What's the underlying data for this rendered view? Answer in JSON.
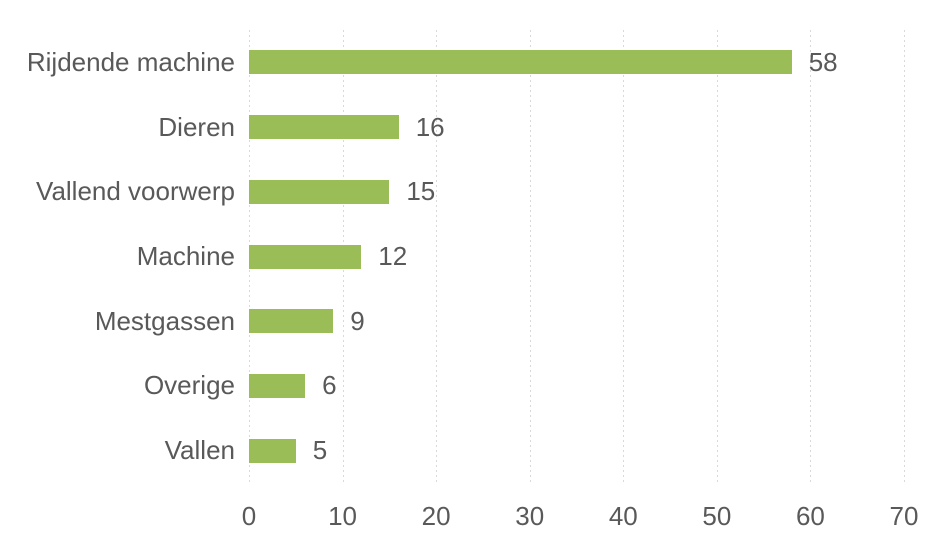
{
  "chart_data": {
    "type": "bar",
    "orientation": "horizontal",
    "title": "",
    "xlabel": "",
    "ylabel": "",
    "categories": [
      "Rijdende machine",
      "Dieren",
      "Vallend voorwerp",
      "Machine",
      "Mestgassen",
      "Overige",
      "Vallen"
    ],
    "values": [
      58,
      16,
      15,
      12,
      9,
      6,
      5
    ],
    "data_labels": [
      "58",
      "16",
      "15",
      "12",
      "9",
      "6",
      "5"
    ],
    "xlim": [
      0,
      70
    ],
    "xticks": [
      0,
      10,
      20,
      30,
      40,
      50,
      60,
      70
    ],
    "xtick_labels": [
      "0",
      "10",
      "20",
      "30",
      "40",
      "50",
      "60",
      "70"
    ],
    "grid": "vertical-dotted",
    "legend": "none",
    "bar_color": "#9BBD58",
    "text_color": "#595959",
    "gridline_color": "#D9D9D9",
    "background_color": "#FFFFFF"
  }
}
